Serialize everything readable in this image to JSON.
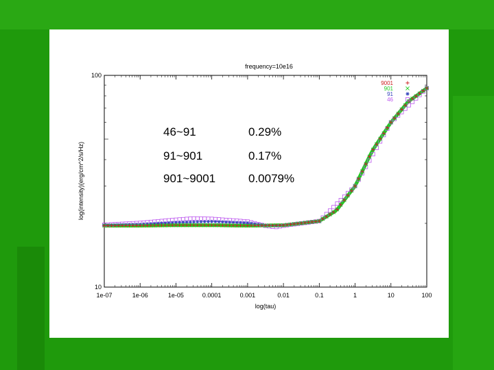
{
  "colors": {
    "background": "#1f9a0c",
    "s9001": "#cc2222",
    "s901": "#22cc22",
    "s91": "#3344bb",
    "s46": "#bb55ee"
  },
  "table": {
    "rows": [
      {
        "range": "46~91",
        "value": "0.29%"
      },
      {
        "range": "91~901",
        "value": "0.17%"
      },
      {
        "range": "901~9001",
        "value": "0.0079%"
      }
    ]
  },
  "chart_data": {
    "type": "scatter",
    "title": "frequency=10e16",
    "xlabel": "log(tau)",
    "ylabel": "log(intensity)(erg/cm^2/s/Hz)",
    "xscale": "log",
    "yscale": "log",
    "xlim": [
      1e-07,
      100
    ],
    "ylim": [
      10,
      100
    ],
    "x_ticks": [
      "1e-07",
      "1e-06",
      "1e-05",
      "0.0001",
      "0.001",
      "0.01",
      "0.1",
      "1",
      "10",
      "100"
    ],
    "y_ticks": [
      "10",
      "100"
    ],
    "legend_position": "top-right",
    "series": [
      {
        "name": "9001",
        "marker": "+",
        "x": [
          1e-07,
          1e-06,
          1e-05,
          0.0001,
          0.001,
          0.01,
          0.1,
          0.3,
          1,
          3,
          10,
          30,
          100
        ],
        "y": [
          19.5,
          19.5,
          19.6,
          19.6,
          19.5,
          19.6,
          20.5,
          23,
          30,
          44,
          60,
          75,
          87
        ]
      },
      {
        "name": "901",
        "marker": "x",
        "x": [
          1e-07,
          1e-06,
          1e-05,
          0.0001,
          0.001,
          0.01,
          0.1,
          0.3,
          1,
          3,
          10,
          30,
          100
        ],
        "y": [
          19.5,
          19.5,
          19.6,
          19.6,
          19.5,
          19.6,
          20.5,
          23,
          30,
          44,
          60,
          75,
          87
        ]
      },
      {
        "name": "91",
        "marker": "*",
        "x": [
          1e-07,
          1e-06,
          1e-05,
          0.0001,
          0.001,
          0.003,
          0.006,
          0.01,
          0.1,
          0.3,
          1,
          3,
          10,
          30,
          100
        ],
        "y": [
          19.6,
          19.8,
          20.2,
          20.4,
          20.1,
          19.6,
          19.5,
          19.6,
          20.5,
          23,
          30,
          44,
          60,
          75,
          87
        ]
      },
      {
        "name": "46",
        "marker": "square",
        "x": [
          1e-07,
          1e-06,
          1e-05,
          3e-05,
          0.0001,
          0.001,
          0.003,
          0.006,
          0.01,
          0.1,
          1,
          10,
          100
        ],
        "y": [
          19.7,
          20.1,
          20.8,
          21.1,
          21.0,
          20.4,
          19.5,
          19.2,
          19.5,
          20.5,
          30,
          60,
          87
        ]
      }
    ]
  }
}
